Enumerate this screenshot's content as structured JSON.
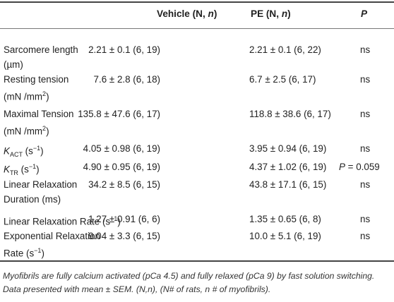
{
  "table": {
    "headers": {
      "col_vehicle": "Vehicle (N, n)",
      "col_pe": "PE (N, n)",
      "col_p": "P"
    },
    "rows": [
      {
        "label_line1": "Sarcomere length",
        "label_line2": "(µm)",
        "vehicle": "2.21 ± 0.1 (6, 19)",
        "pe": "2.21 ± 0.1 (6, 22)",
        "p": "ns"
      },
      {
        "label_line1": "Resting tension",
        "label_line2": "(mN /mm²)",
        "vehicle": "7.6 ± 2.8 (6, 18)",
        "pe": "6.7 ± 2.5 (6, 17)",
        "p": "ns"
      },
      {
        "label_line1": "Maximal Tension",
        "label_line2": "(mN /mm²)",
        "vehicle": "135.8 ± 47.6 (6, 17)",
        "pe": "118.8 ± 38.6 (6, 17)",
        "p": "ns"
      },
      {
        "label_line1": "Kₐₙₜ (s⁻¹)",
        "label_display": "KACT (s⁻¹)",
        "vehicle": "4.05 ± 0.98 (6, 19)",
        "pe": "3.95 ± 0.94 (6, 19)",
        "p": "ns"
      },
      {
        "label_line1": "KTR (s⁻¹)",
        "vehicle": "4.90 ± 0.95 (6, 19)",
        "pe": "4.37 ± 1.02 (6, 19)",
        "p": "P = 0.059"
      },
      {
        "label_line1": "Linear Relaxation",
        "label_line2": "Duration (ms)",
        "vehicle": "34.2 ± 8.5 (6, 15)",
        "pe": "43.8 ± 17.1 (6, 15)",
        "p": "ns"
      },
      {
        "label_line1": "Linear Relaxation Rate (s⁻¹)",
        "vehicle": "1.27 ± 0.91 (6, 6)",
        "pe": "1.35 ± 0.65 (6, 8)",
        "p": "ns"
      },
      {
        "label_line1": "Exponential Relaxation",
        "label_line2": "Rate (s⁻¹)",
        "vehicle": "9.04 ± 3.3 (6, 15)",
        "pe": "10.0 ± 5.1 (6, 19)",
        "p": "ns"
      }
    ]
  },
  "parts": {
    "um": "µm",
    "mn_mm": "mN /mm",
    "sup2": "2",
    "k": "K",
    "act": "ACT",
    "tr": "TR",
    "s": "(s",
    "minus1": "−1",
    "close": ")",
    "p_italic": "P",
    "p_rest": " = 0.059"
  },
  "caption": "Myofibrils are fully calcium activated (pCa 4.5) and fully relaxed (pCa 9) by fast solution switching. Data presented with mean ± SEM. (N,n), (N# of rats, n # of myofibrils)."
}
